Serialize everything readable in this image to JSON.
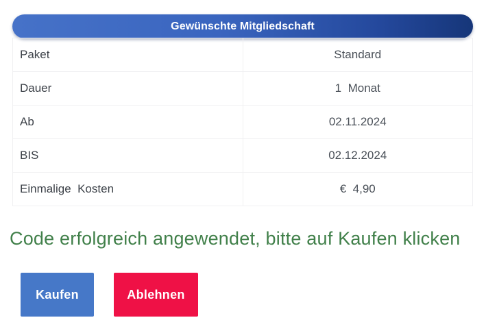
{
  "header": {
    "title": "Gewünschte Mitgliedschaft"
  },
  "table": {
    "rows": [
      {
        "label": "Paket",
        "value": "Standard"
      },
      {
        "label": "Dauer",
        "value": "1  Monat"
      },
      {
        "label": "Ab",
        "value": "02.11.2024"
      },
      {
        "label": "BIS",
        "value": "02.12.2024"
      },
      {
        "label": "Einmalige  Kosten",
        "value": "€  4,90"
      }
    ]
  },
  "message": {
    "text": "Code erfolgreich angewendet, bitte auf Kaufen klicken",
    "color": "#41804a"
  },
  "actions": {
    "buy_label": "Kaufen",
    "decline_label": "Ablehnen",
    "buy_color": "#4678c8",
    "decline_color": "#ef1146"
  },
  "colors": {
    "header_gradient_start": "#4672c8",
    "header_gradient_end": "#163679",
    "table_border": "#f0f0f2",
    "label_text": "#3d4249",
    "value_text": "#4a5058"
  }
}
